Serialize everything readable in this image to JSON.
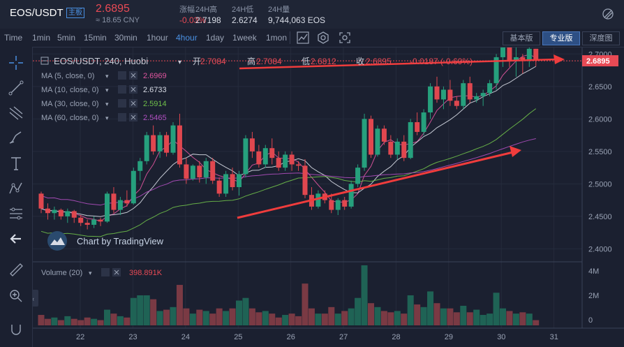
{
  "header": {
    "pair": "EOS/USDT",
    "badge": "主板",
    "price": "2.6895",
    "cny": "≈ 18.65 CNY",
    "stats": [
      {
        "label": "涨幅",
        "value": "-0.03%"
      },
      {
        "label": "24H高",
        "value": "2.7198"
      },
      {
        "label": "24H低",
        "value": "2.6274"
      },
      {
        "label": "24H量",
        "value": "9,744,063 EOS"
      }
    ]
  },
  "toolbar": {
    "intervals": [
      "Time",
      "1min",
      "5min",
      "15min",
      "30min",
      "1hour",
      "4hour",
      "1day",
      "1week",
      "1mon"
    ],
    "active_interval": "4hour",
    "versions": [
      "基本版",
      "专业版",
      "深度图"
    ],
    "active_version": "专业版"
  },
  "chart_data": {
    "type": "candlestick",
    "title": "EOS/USDT, 240, Huobi",
    "ohlc_legend": {
      "open_label": "开",
      "open": "2.7084",
      "high_label": "高",
      "high": "2.7084",
      "low_label": "低",
      "low": "2.6812",
      "close_label": "收",
      "close": "2.6895",
      "change": "-0.0187 (-0.69%)"
    },
    "indicators": [
      {
        "label": "MA (5, close, 0)",
        "value": "2.6969",
        "color": "#e0559f"
      },
      {
        "label": "MA (10, close, 0)",
        "value": "2.6733",
        "color": "#d8dce6"
      },
      {
        "label": "MA (30, close, 0)",
        "value": "2.5914",
        "color": "#6fbf4a"
      },
      {
        "label": "MA (60, close, 0)",
        "value": "2.5465",
        "color": "#b04fc0"
      }
    ],
    "volume_label": "Volume (20)",
    "volume_value": "398.891K",
    "price_axis": {
      "min": 2.38,
      "max": 2.71,
      "ticks": [
        "2.7000",
        "2.6500",
        "2.6000",
        "2.5500",
        "2.5000",
        "2.4500",
        "2.4000"
      ]
    },
    "last_price_label": "2.6895",
    "volume_axis": {
      "max": 4600000,
      "ticks": [
        "4M",
        "2M",
        "0"
      ]
    },
    "x_ticks": [
      "22",
      "23",
      "24",
      "25",
      "26",
      "27",
      "28",
      "29",
      "30",
      "31"
    ],
    "watermark": "Chart by TradingView",
    "candles": [
      [
        2.485,
        2.488,
        2.455,
        2.462
      ],
      [
        2.462,
        2.47,
        2.445,
        2.455
      ],
      [
        2.455,
        2.465,
        2.445,
        2.46
      ],
      [
        2.46,
        2.462,
        2.445,
        2.45
      ],
      [
        2.45,
        2.462,
        2.44,
        2.458
      ],
      [
        2.458,
        2.46,
        2.44,
        2.448
      ],
      [
        2.448,
        2.452,
        2.435,
        2.44
      ],
      [
        2.44,
        2.445,
        2.43,
        2.437
      ],
      [
        2.437,
        2.45,
        2.432,
        2.445
      ],
      [
        2.445,
        2.448,
        2.435,
        2.442
      ],
      [
        2.442,
        2.488,
        2.44,
        2.485
      ],
      [
        2.485,
        2.495,
        2.455,
        2.46
      ],
      [
        2.46,
        2.48,
        2.452,
        2.475
      ],
      [
        2.475,
        2.49,
        2.465,
        2.47
      ],
      [
        2.47,
        2.525,
        2.468,
        2.52
      ],
      [
        2.52,
        2.54,
        2.505,
        2.535
      ],
      [
        2.535,
        2.58,
        2.53,
        2.575
      ],
      [
        2.575,
        2.59,
        2.545,
        2.55
      ],
      [
        2.55,
        2.58,
        2.54,
        2.575
      ],
      [
        2.575,
        2.58,
        2.542,
        2.548
      ],
      [
        2.548,
        2.595,
        2.545,
        2.59
      ],
      [
        2.59,
        2.608,
        2.525,
        2.53
      ],
      [
        2.53,
        2.54,
        2.5,
        2.508
      ],
      [
        2.508,
        2.53,
        2.505,
        2.528
      ],
      [
        2.528,
        2.535,
        2.502,
        2.51
      ],
      [
        2.51,
        2.54,
        2.5,
        2.535
      ],
      [
        2.535,
        2.54,
        2.5,
        2.505
      ],
      [
        2.505,
        2.51,
        2.48,
        2.485
      ],
      [
        2.485,
        2.52,
        2.48,
        2.515
      ],
      [
        2.515,
        2.525,
        2.49,
        2.495
      ],
      [
        2.495,
        2.52,
        2.482,
        2.515
      ],
      [
        2.515,
        2.575,
        2.51,
        2.57
      ],
      [
        2.57,
        2.58,
        2.54,
        2.55
      ],
      [
        2.55,
        2.56,
        2.525,
        2.53
      ],
      [
        2.53,
        2.56,
        2.525,
        2.555
      ],
      [
        2.555,
        2.57,
        2.53,
        2.54
      ],
      [
        2.54,
        2.55,
        2.52,
        2.525
      ],
      [
        2.525,
        2.55,
        2.52,
        2.545
      ],
      [
        2.545,
        2.55,
        2.52,
        2.53
      ],
      [
        2.53,
        2.535,
        2.52,
        2.528
      ],
      [
        2.528,
        2.538,
        2.478,
        2.483
      ],
      [
        2.483,
        2.495,
        2.46,
        2.465
      ],
      [
        2.465,
        2.49,
        2.462,
        2.485
      ],
      [
        2.485,
        2.49,
        2.47,
        2.475
      ],
      [
        2.475,
        2.485,
        2.455,
        2.46
      ],
      [
        2.46,
        2.478,
        2.452,
        2.475
      ],
      [
        2.475,
        2.48,
        2.46,
        2.465
      ],
      [
        2.465,
        2.505,
        2.462,
        2.5
      ],
      [
        2.5,
        2.53,
        2.495,
        2.525
      ],
      [
        2.525,
        2.608,
        2.52,
        2.6
      ],
      [
        2.6,
        2.605,
        2.54,
        2.545
      ],
      [
        2.545,
        2.59,
        2.542,
        2.585
      ],
      [
        2.585,
        2.59,
        2.56,
        2.565
      ],
      [
        2.565,
        2.575,
        2.54,
        2.545
      ],
      [
        2.545,
        2.57,
        2.538,
        2.565
      ],
      [
        2.565,
        2.575,
        2.535,
        2.54
      ],
      [
        2.54,
        2.6,
        2.538,
        2.595
      ],
      [
        2.595,
        2.61,
        2.575,
        2.58
      ],
      [
        2.58,
        2.615,
        2.575,
        2.61
      ],
      [
        2.61,
        2.655,
        2.6,
        2.65
      ],
      [
        2.65,
        2.665,
        2.625,
        2.63
      ],
      [
        2.63,
        2.65,
        2.615,
        2.645
      ],
      [
        2.645,
        2.66,
        2.62,
        2.628
      ],
      [
        2.628,
        2.635,
        2.615,
        2.62
      ],
      [
        2.62,
        2.66,
        2.615,
        2.655
      ],
      [
        2.655,
        2.665,
        2.625,
        2.63
      ],
      [
        2.63,
        2.64,
        2.625,
        2.635
      ],
      [
        2.635,
        2.645,
        2.62,
        2.64
      ],
      [
        2.64,
        2.66,
        2.635,
        2.655
      ],
      [
        2.655,
        2.7,
        2.645,
        2.695
      ],
      [
        2.695,
        2.72,
        2.68,
        2.712
      ],
      [
        2.712,
        2.715,
        2.68,
        2.69
      ],
      [
        2.69,
        2.712,
        2.665,
        2.695
      ],
      [
        2.695,
        2.7,
        2.67,
        2.69
      ],
      [
        2.69,
        2.712,
        2.68,
        2.708
      ],
      [
        2.708,
        2.708,
        2.681,
        2.6895
      ]
    ],
    "volumes": [
      0.8,
      0.5,
      0.6,
      0.4,
      0.7,
      0.5,
      0.4,
      0.6,
      0.5,
      0.4,
      1.2,
      0.9,
      0.7,
      0.6,
      2.1,
      2.3,
      2.3,
      2.0,
      1.1,
      1.2,
      1.4,
      3.1,
      1.3,
      0.9,
      1.2,
      1.1,
      0.9,
      1.3,
      1.1,
      1.3,
      1.9,
      2.1,
      1.3,
      1.0,
      1.1,
      0.9,
      0.6,
      0.8,
      0.9,
      0.7,
      3.2,
      1.3,
      0.9,
      0.9,
      1.4,
      0.9,
      1.1,
      1.3,
      2.1,
      4.6,
      1.7,
      1.4,
      1.1,
      1.0,
      1.1,
      0.9,
      2.3,
      1.6,
      1.4,
      2.6,
      1.7,
      1.3,
      1.3,
      1.0,
      1.5,
      1.0,
      1.2,
      0.8,
      0.9,
      2.5,
      1.3,
      1.1,
      0.9,
      1.0,
      0.9,
      0.4
    ]
  }
}
